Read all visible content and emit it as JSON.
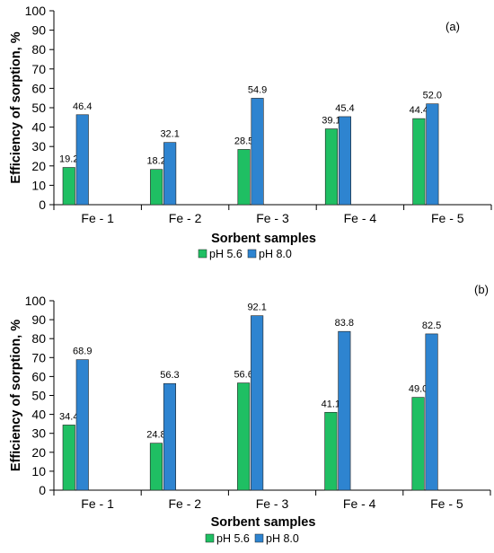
{
  "chart_data": [
    {
      "type": "bar",
      "panel_label": "(a)",
      "categories": [
        "Fe - 1",
        "Fe - 2",
        "Fe - 3",
        "Fe - 4",
        "Fe - 5"
      ],
      "series": [
        {
          "name": "pH 5.6",
          "values": [
            19.2,
            18.2,
            28.5,
            39.1,
            44.4
          ],
          "labels": [
            "19.2",
            "18.2",
            "28.5",
            "39.1",
            "44.4"
          ],
          "color": "#1fbf63"
        },
        {
          "name": "pH 8.0",
          "values": [
            46.4,
            32.1,
            54.9,
            45.4,
            52.0
          ],
          "labels": [
            "46.4",
            "32.1",
            "54.9",
            "45.4",
            "52.0"
          ],
          "color": "#2e84d0"
        }
      ],
      "xlabel": "Sorbent samples",
      "ylabel": "Efficiency of sorption, %",
      "ylim": [
        0,
        100
      ],
      "yticks": [
        "0",
        "10",
        "20",
        "30",
        "40",
        "50",
        "60",
        "70",
        "80",
        "90",
        "100"
      ],
      "legend_position": "bottom-center",
      "grid": false
    },
    {
      "type": "bar",
      "panel_label": "(b)",
      "categories": [
        "Fe - 1",
        "Fe - 2",
        "Fe - 3",
        "Fe - 4",
        "Fe - 5"
      ],
      "series": [
        {
          "name": "pH 5.6",
          "values": [
            34.4,
            24.8,
            56.6,
            41.1,
            49.0
          ],
          "labels": [
            "34.4",
            "24.8",
            "56.6",
            "41.1",
            "49.0"
          ],
          "color": "#1fbf63"
        },
        {
          "name": "pH 8.0",
          "values": [
            68.9,
            56.3,
            92.1,
            83.8,
            82.5
          ],
          "labels": [
            "68.9",
            "56.3",
            "92.1",
            "83.8",
            "82.5"
          ],
          "color": "#2e84d0"
        }
      ],
      "xlabel": "Sorbent samples",
      "ylabel": "Efficiency of sorption, %",
      "ylim": [
        0,
        100
      ],
      "yticks": [
        "0",
        "10",
        "20",
        "30",
        "40",
        "50",
        "60",
        "70",
        "80",
        "90",
        "100"
      ],
      "legend_position": "bottom-center",
      "grid": false
    }
  ]
}
